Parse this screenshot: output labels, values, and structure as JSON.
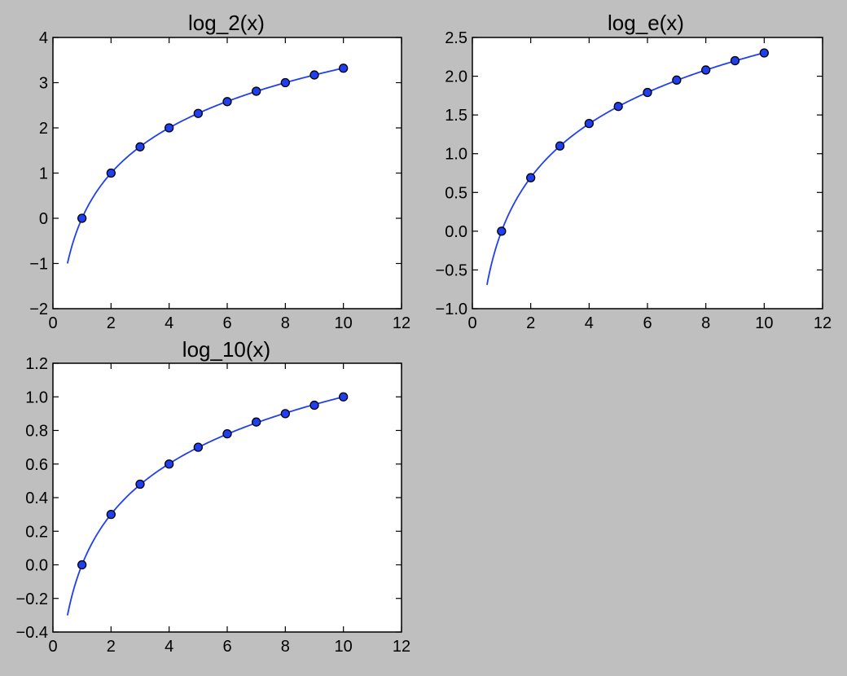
{
  "figure": {
    "background": "#bfbfbf",
    "axes_background": "#ffffff",
    "line_color": "#1f3ff0",
    "marker_color": "#1f3ff0",
    "marker_edge": "#000000"
  },
  "chart_data": [
    {
      "type": "line",
      "title": "log_2(x)",
      "xlim": [
        0,
        12
      ],
      "ylim": [
        -2,
        4
      ],
      "xticks": [
        0,
        2,
        4,
        6,
        8,
        10,
        12
      ],
      "yticks": [
        -2,
        -1,
        0,
        1,
        2,
        3,
        4
      ],
      "ytick_labels": [
        "−2",
        "−1",
        "0",
        "1",
        "2",
        "3",
        "4"
      ],
      "xtick_labels": [
        "0",
        "2",
        "4",
        "6",
        "8",
        "10",
        "12"
      ],
      "curve_x_range": [
        0.5,
        10
      ],
      "series": [
        {
          "x": [
            1,
            2,
            3,
            4,
            5,
            6,
            7,
            8,
            9,
            10
          ],
          "y": [
            0,
            1,
            1.58,
            2,
            2.32,
            2.58,
            2.81,
            3,
            3.17,
            3.32
          ]
        }
      ]
    },
    {
      "type": "line",
      "title": "log_e(x)",
      "xlim": [
        0,
        12
      ],
      "ylim": [
        -1,
        2.5
      ],
      "xticks": [
        0,
        2,
        4,
        6,
        8,
        10,
        12
      ],
      "yticks": [
        -1,
        -0.5,
        0,
        0.5,
        1,
        1.5,
        2,
        2.5
      ],
      "ytick_labels": [
        "−1.0",
        "−0.5",
        "0.0",
        "0.5",
        "1.0",
        "1.5",
        "2.0",
        "2.5"
      ],
      "xtick_labels": [
        "0",
        "2",
        "4",
        "6",
        "8",
        "10",
        "12"
      ],
      "curve_x_range": [
        0.5,
        10
      ],
      "series": [
        {
          "x": [
            1,
            2,
            3,
            4,
            5,
            6,
            7,
            8,
            9,
            10
          ],
          "y": [
            0,
            0.69,
            1.1,
            1.39,
            1.61,
            1.79,
            1.95,
            2.08,
            2.2,
            2.3
          ]
        }
      ]
    },
    {
      "type": "line",
      "title": "log_10(x)",
      "xlim": [
        0,
        12
      ],
      "ylim": [
        -0.4,
        1.2
      ],
      "xticks": [
        0,
        2,
        4,
        6,
        8,
        10,
        12
      ],
      "yticks": [
        -0.4,
        -0.2,
        0,
        0.2,
        0.4,
        0.6,
        0.8,
        1,
        1.2
      ],
      "ytick_labels": [
        "−0.4",
        "−0.2",
        "0.0",
        "0.2",
        "0.4",
        "0.6",
        "0.8",
        "1.0",
        "1.2"
      ],
      "xtick_labels": [
        "0",
        "2",
        "4",
        "6",
        "8",
        "10",
        "12"
      ],
      "curve_x_range": [
        0.5,
        10
      ],
      "series": [
        {
          "x": [
            1,
            2,
            3,
            4,
            5,
            6,
            7,
            8,
            9,
            10
          ],
          "y": [
            0,
            0.3,
            0.48,
            0.6,
            0.7,
            0.78,
            0.85,
            0.9,
            0.95,
            1
          ]
        }
      ]
    }
  ]
}
